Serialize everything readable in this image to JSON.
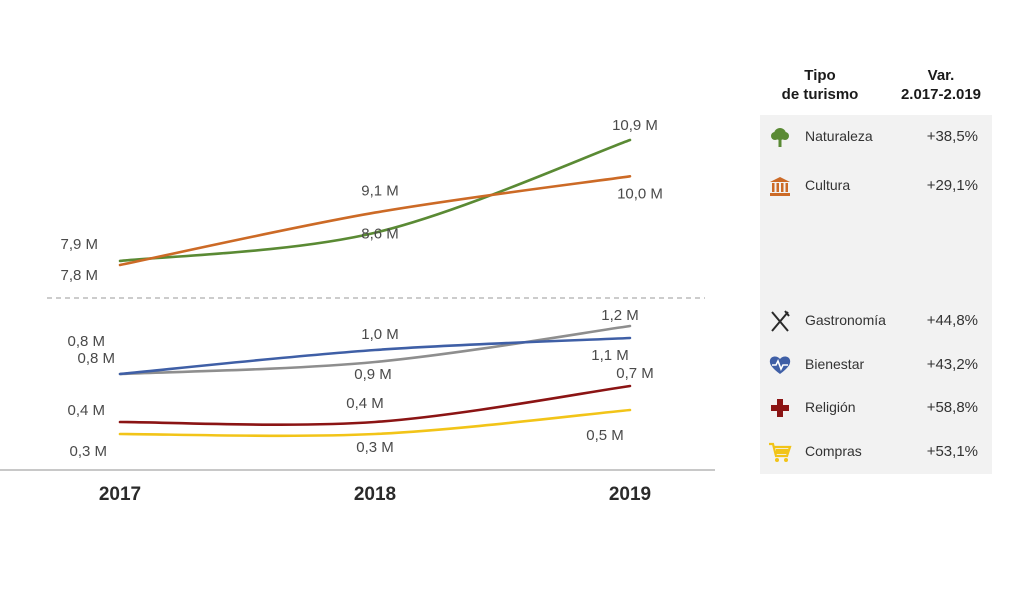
{
  "chart_data": {
    "type": "line",
    "x": [
      "2017",
      "2018",
      "2019"
    ],
    "series": [
      {
        "name": "Naturaleza",
        "values": [
          7.9,
          8.6,
          10.9
        ],
        "labels": [
          "7,9 M",
          "8,6 M",
          "10,9 M"
        ],
        "color": "#5a8a34",
        "icon": "tree-icon",
        "variation": "+38,5%"
      },
      {
        "name": "Cultura",
        "values": [
          7.8,
          9.1,
          10.0
        ],
        "labels": [
          "7,8 M",
          "9,1 M",
          "10,0 M"
        ],
        "color": "#cc6a26",
        "icon": "museum-icon",
        "variation": "+29,1%"
      },
      {
        "name": "Gastronomía",
        "values": [
          0.8,
          0.9,
          1.2
        ],
        "labels": [
          "0,8 M",
          "0,9 M",
          "1,2 M"
        ],
        "color": "#8e8e8e",
        "icon": "fork-knife-icon",
        "variation": "+44,8%"
      },
      {
        "name": "Bienestar",
        "values": [
          0.8,
          1.0,
          1.1
        ],
        "labels": [
          "0,8 M",
          "1,0 M",
          "1,1 M"
        ],
        "color": "#3f5fa6",
        "icon": "heart-pulse-icon",
        "variation": "+43,2%"
      },
      {
        "name": "Religión",
        "values": [
          0.4,
          0.4,
          0.7
        ],
        "labels": [
          "0,4 M",
          "0,4 M",
          "0,7 M"
        ],
        "color": "#8b1414",
        "icon": "cross-icon",
        "variation": "+58,8%"
      },
      {
        "name": "Compras",
        "values": [
          0.3,
          0.3,
          0.5
        ],
        "labels": [
          "0,3 M",
          "0,3 M",
          "0,5 M"
        ],
        "color": "#f2c418",
        "icon": "cart-icon",
        "variation": "+53,1%"
      }
    ],
    "axis_break": true,
    "grid": false,
    "legend_placement": "right"
  },
  "legend": {
    "header_type_line1": "Tipo",
    "header_type_line2": "de turismo",
    "header_var_line1": "Var.",
    "header_var_line2": "2.017-2.019"
  }
}
